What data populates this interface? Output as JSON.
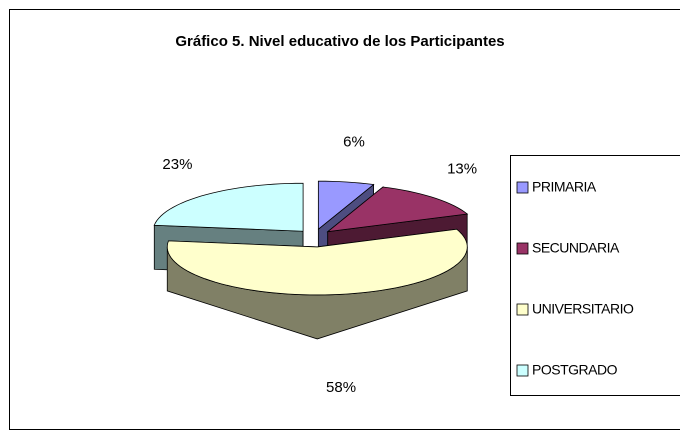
{
  "chart_data": {
    "type": "pie3d",
    "title": "Gráfico 5. Nivel educativo de los Participantes",
    "categories": [
      "PRIMARIA",
      "SECUNDARIA",
      "UNIVERSITARIO",
      "POSTGRADO"
    ],
    "values": [
      6,
      13,
      58,
      23
    ],
    "value_labels": [
      "6%",
      "13%",
      "58%",
      "23%"
    ],
    "colors": [
      "#9999ff",
      "#993366",
      "#ffffcc",
      "#ccffff"
    ],
    "legend": "right"
  }
}
